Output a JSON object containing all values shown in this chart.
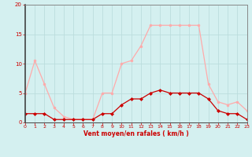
{
  "hours": [
    0,
    1,
    2,
    3,
    4,
    5,
    6,
    7,
    8,
    9,
    10,
    11,
    12,
    13,
    14,
    15,
    16,
    17,
    18,
    19,
    20,
    21,
    22,
    23
  ],
  "vent_moyen": [
    1.5,
    1.5,
    1.5,
    0.5,
    0.5,
    0.5,
    0.5,
    0.5,
    1.5,
    1.5,
    3.0,
    4.0,
    4.0,
    5.0,
    5.5,
    5.0,
    5.0,
    5.0,
    5.0,
    4.0,
    2.0,
    1.5,
    1.5,
    0.5
  ],
  "rafales": [
    5.0,
    10.5,
    6.5,
    2.5,
    1.0,
    0.5,
    0.5,
    0.5,
    5.0,
    5.0,
    10.0,
    10.5,
    13.0,
    16.5,
    16.5,
    16.5,
    16.5,
    16.5,
    16.5,
    6.5,
    3.5,
    3.0,
    3.5,
    2.0
  ],
  "xlabel": "Vent moyen/en rafales ( km/h )",
  "ylim": [
    0,
    20
  ],
  "xlim": [
    0,
    23
  ],
  "yticks": [
    0,
    5,
    10,
    15,
    20
  ],
  "xticks": [
    0,
    1,
    2,
    3,
    4,
    5,
    6,
    7,
    8,
    9,
    10,
    11,
    12,
    13,
    14,
    15,
    16,
    17,
    18,
    19,
    20,
    21,
    22,
    23
  ],
  "color_moyen": "#cc0000",
  "color_rafales": "#ffaaaa",
  "bg_color": "#d4f0f0",
  "grid_color": "#bbdddd",
  "label_color": "#cc0000",
  "spine_color": "#888888"
}
